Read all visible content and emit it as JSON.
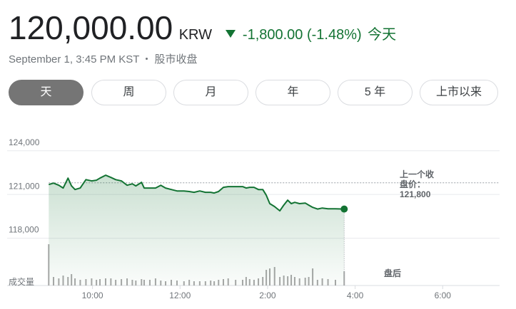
{
  "quote": {
    "price": "120,000.00",
    "currency": "KRW",
    "change": "-1,800.00 (-1.48%)",
    "period": "今天",
    "timestamp": "September 1, 3:45 PM KST",
    "status": "股市收盘"
  },
  "tabs": [
    "天",
    "周",
    "月",
    "年",
    "5 年",
    "上市以来"
  ],
  "chart_data": {
    "type": "line",
    "color": "#137333",
    "x": [
      9,
      9.11,
      9.23,
      9.33,
      9.44,
      9.52,
      9.6,
      9.72,
      9.85,
      9.98,
      10.09,
      10.17,
      10.3,
      10.42,
      10.53,
      10.66,
      10.79,
      10.91,
      10.99,
      11.12,
      11.18,
      11.31,
      11.44,
      11.56,
      11.67,
      11.8,
      11.93,
      12.09,
      12.21,
      12.32,
      12.45,
      12.58,
      12.7,
      12.78,
      12.88,
      12.99,
      13.1,
      13.27,
      13.43,
      13.51,
      13.59,
      13.69,
      13.79,
      13.89,
      13.97,
      14.05,
      14.16,
      14.28,
      14.37,
      14.46,
      14.54,
      14.62,
      14.73,
      14.86,
      14.94,
      15.03,
      15.14,
      15.25,
      15.38,
      15.55,
      15.75
    ],
    "values": [
      121680,
      121780,
      121630,
      121440,
      122120,
      121590,
      121340,
      121440,
      122020,
      121930,
      121980,
      122120,
      122320,
      122170,
      122020,
      121930,
      121630,
      121730,
      121590,
      121830,
      121440,
      121440,
      121440,
      121630,
      121440,
      121340,
      121240,
      121240,
      121200,
      121150,
      121240,
      121150,
      121150,
      121100,
      121200,
      121490,
      121540,
      121540,
      121540,
      121440,
      121490,
      121490,
      121340,
      121340,
      120950,
      120370,
      120170,
      119880,
      120270,
      120610,
      120370,
      120460,
      120370,
      120410,
      120270,
      120120,
      120000,
      120070,
      120020,
      120020,
      120000
    ],
    "volume": [
      58,
      12,
      10,
      14,
      12,
      16,
      10,
      8,
      9,
      10,
      8,
      9,
      10,
      10,
      8,
      9,
      10,
      8,
      7,
      9,
      8,
      8,
      10,
      7,
      6,
      8,
      7,
      6,
      8,
      6,
      6,
      6,
      7,
      6,
      8,
      9,
      10,
      8,
      8,
      12,
      9,
      8,
      10,
      12,
      22,
      24,
      26,
      12,
      14,
      13,
      15,
      12,
      10,
      11,
      12,
      24,
      8,
      10,
      9,
      8,
      20
    ],
    "xlim": [
      8.05,
      19.3
    ],
    "xticks": [
      {
        "value": 10,
        "label": "10:00"
      },
      {
        "value": 12,
        "label": "12:00"
      },
      {
        "value": 14,
        "label": "2:00"
      },
      {
        "value": 16,
        "label": "4:00"
      },
      {
        "value": 18,
        "label": "6:00"
      }
    ],
    "ylim": [
      115000,
      125500
    ],
    "yticks": [
      {
        "value": 124000,
        "label": "124,000"
      },
      {
        "value": 121000,
        "label": "121,000"
      },
      {
        "value": 118000,
        "label": "118,000"
      }
    ],
    "grid": true,
    "previous_close": {
      "text": "上一个收盘价：",
      "value": 121800,
      "value_label": "121,800"
    },
    "volume_label": "成交量",
    "after_hours_label": "盘后"
  }
}
